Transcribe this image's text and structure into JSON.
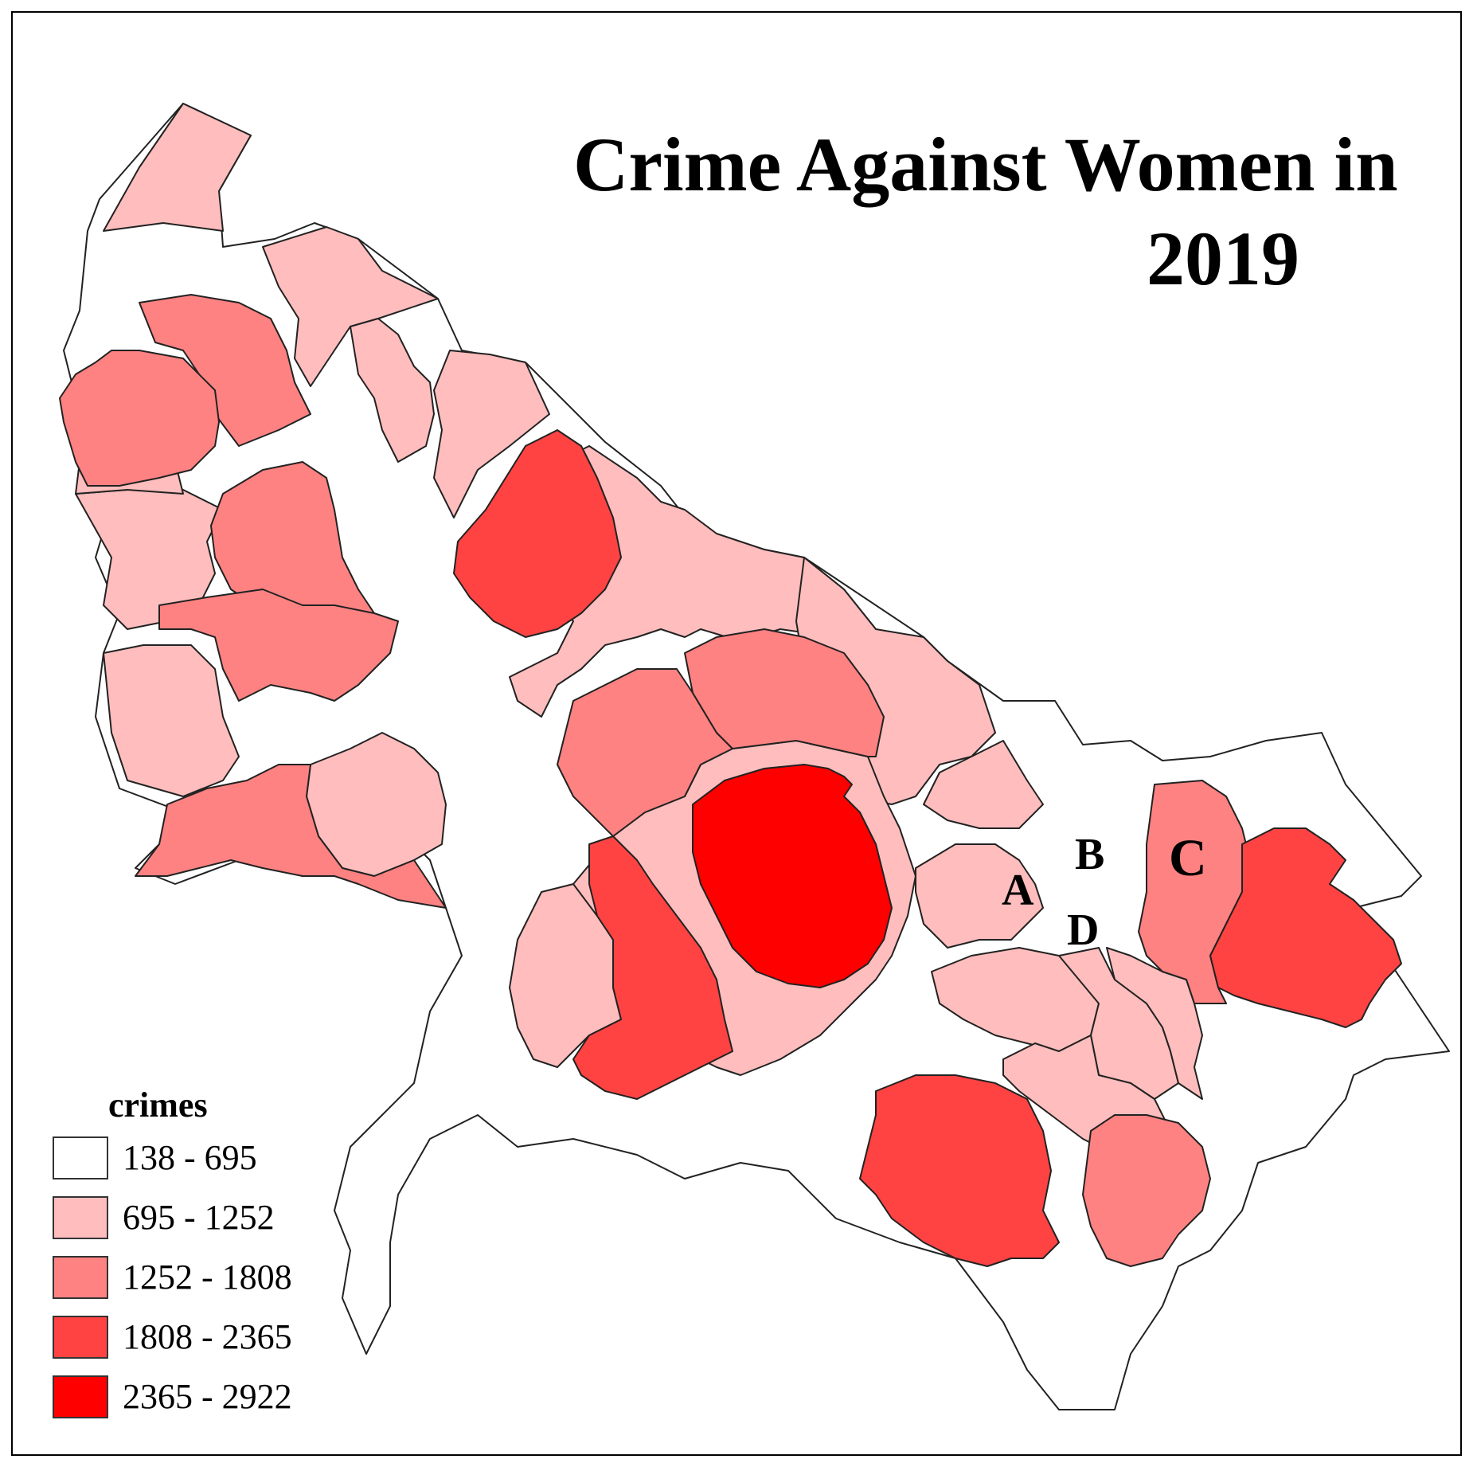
{
  "title_line1": "Crime Against Women in",
  "title_line2": "2019",
  "legend": {
    "title": "crimes",
    "items": [
      {
        "label": "138 - 695",
        "color": "#ffffff"
      },
      {
        "label": "695 - 1252",
        "color": "#ffbdbd"
      },
      {
        "label": "1252 - 1808",
        "color": "#ff8282"
      },
      {
        "label": "1808 - 2365",
        "color": "#ff4343"
      },
      {
        "label": "2365 - 2922",
        "color": "#ff0000"
      }
    ]
  },
  "region_labels": {
    "a": "A",
    "b": "B",
    "c": "C",
    "d": "D"
  }
}
